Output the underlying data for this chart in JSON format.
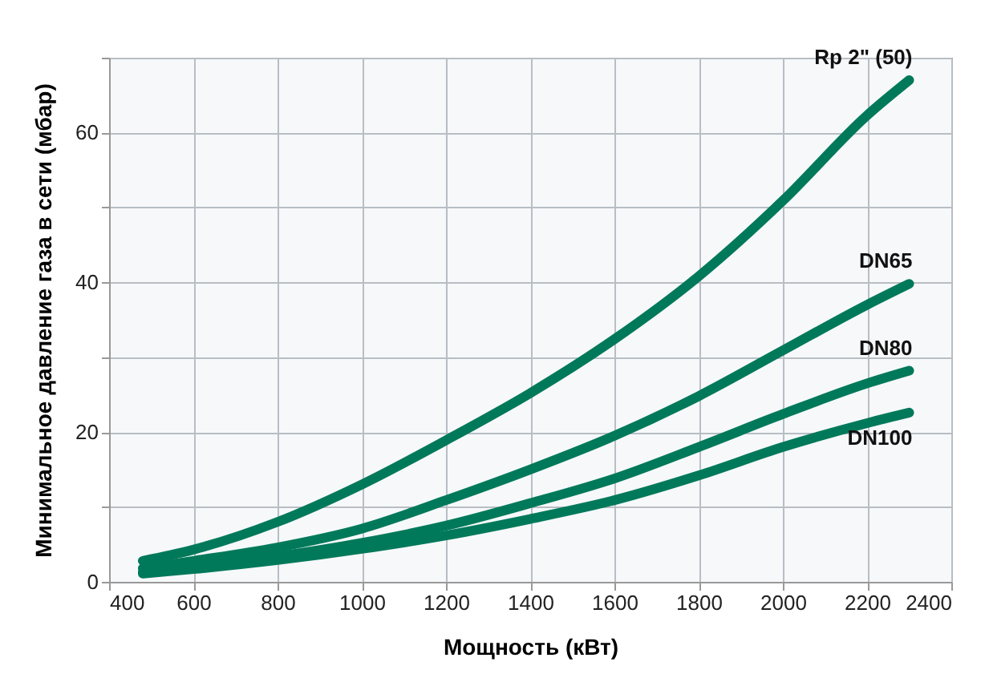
{
  "chart_data": {
    "type": "line",
    "xlabel": "Мощность  (кВт)",
    "ylabel": "Минимальное давление газа в сети (мбар)",
    "xlim": [
      400,
      2400
    ],
    "xticks": [
      400,
      600,
      800,
      1000,
      1200,
      1400,
      1600,
      1800,
      2000,
      2200,
      2400
    ],
    "ylim": [
      0,
      70
    ],
    "yticks": [
      0,
      {
        "value": 10,
        "label": null
      },
      20,
      {
        "value": 30,
        "label": null
      },
      40,
      {
        "value": 50,
        "label": null
      },
      60,
      {
        "value": 70,
        "label": null
      }
    ],
    "grid": true,
    "legend": false,
    "marker": "none",
    "line_style": "solid",
    "x": [
      480,
      600,
      800,
      1000,
      1200,
      1400,
      1600,
      1800,
      2000,
      2200,
      2300
    ],
    "series": [
      {
        "name": "Rp 2\" (50)",
        "color": "#00795a",
        "values": [
          2.8,
          4.3,
          8,
          13,
          18.9,
          25.2,
          32.4,
          40.8,
          50.9,
          62.3,
          67
        ]
      },
      {
        "name": "DN65",
        "color": "#00795a",
        "values": [
          1.8,
          2.8,
          4.6,
          7.1,
          10.9,
          15,
          19.5,
          24.8,
          30.9,
          37,
          39.8
        ]
      },
      {
        "name": "DN80",
        "color": "#00795a",
        "values": [
          1.3,
          2,
          3.4,
          5.2,
          7.5,
          10.5,
          13.8,
          18,
          22.4,
          26.5,
          28.2
        ]
      },
      {
        "name": "DN100",
        "color": "#00795a",
        "values": [
          1.1,
          1.7,
          2.9,
          4.4,
          6.2,
          8.4,
          10.9,
          14.2,
          18,
          21.2,
          22.6
        ]
      }
    ]
  }
}
